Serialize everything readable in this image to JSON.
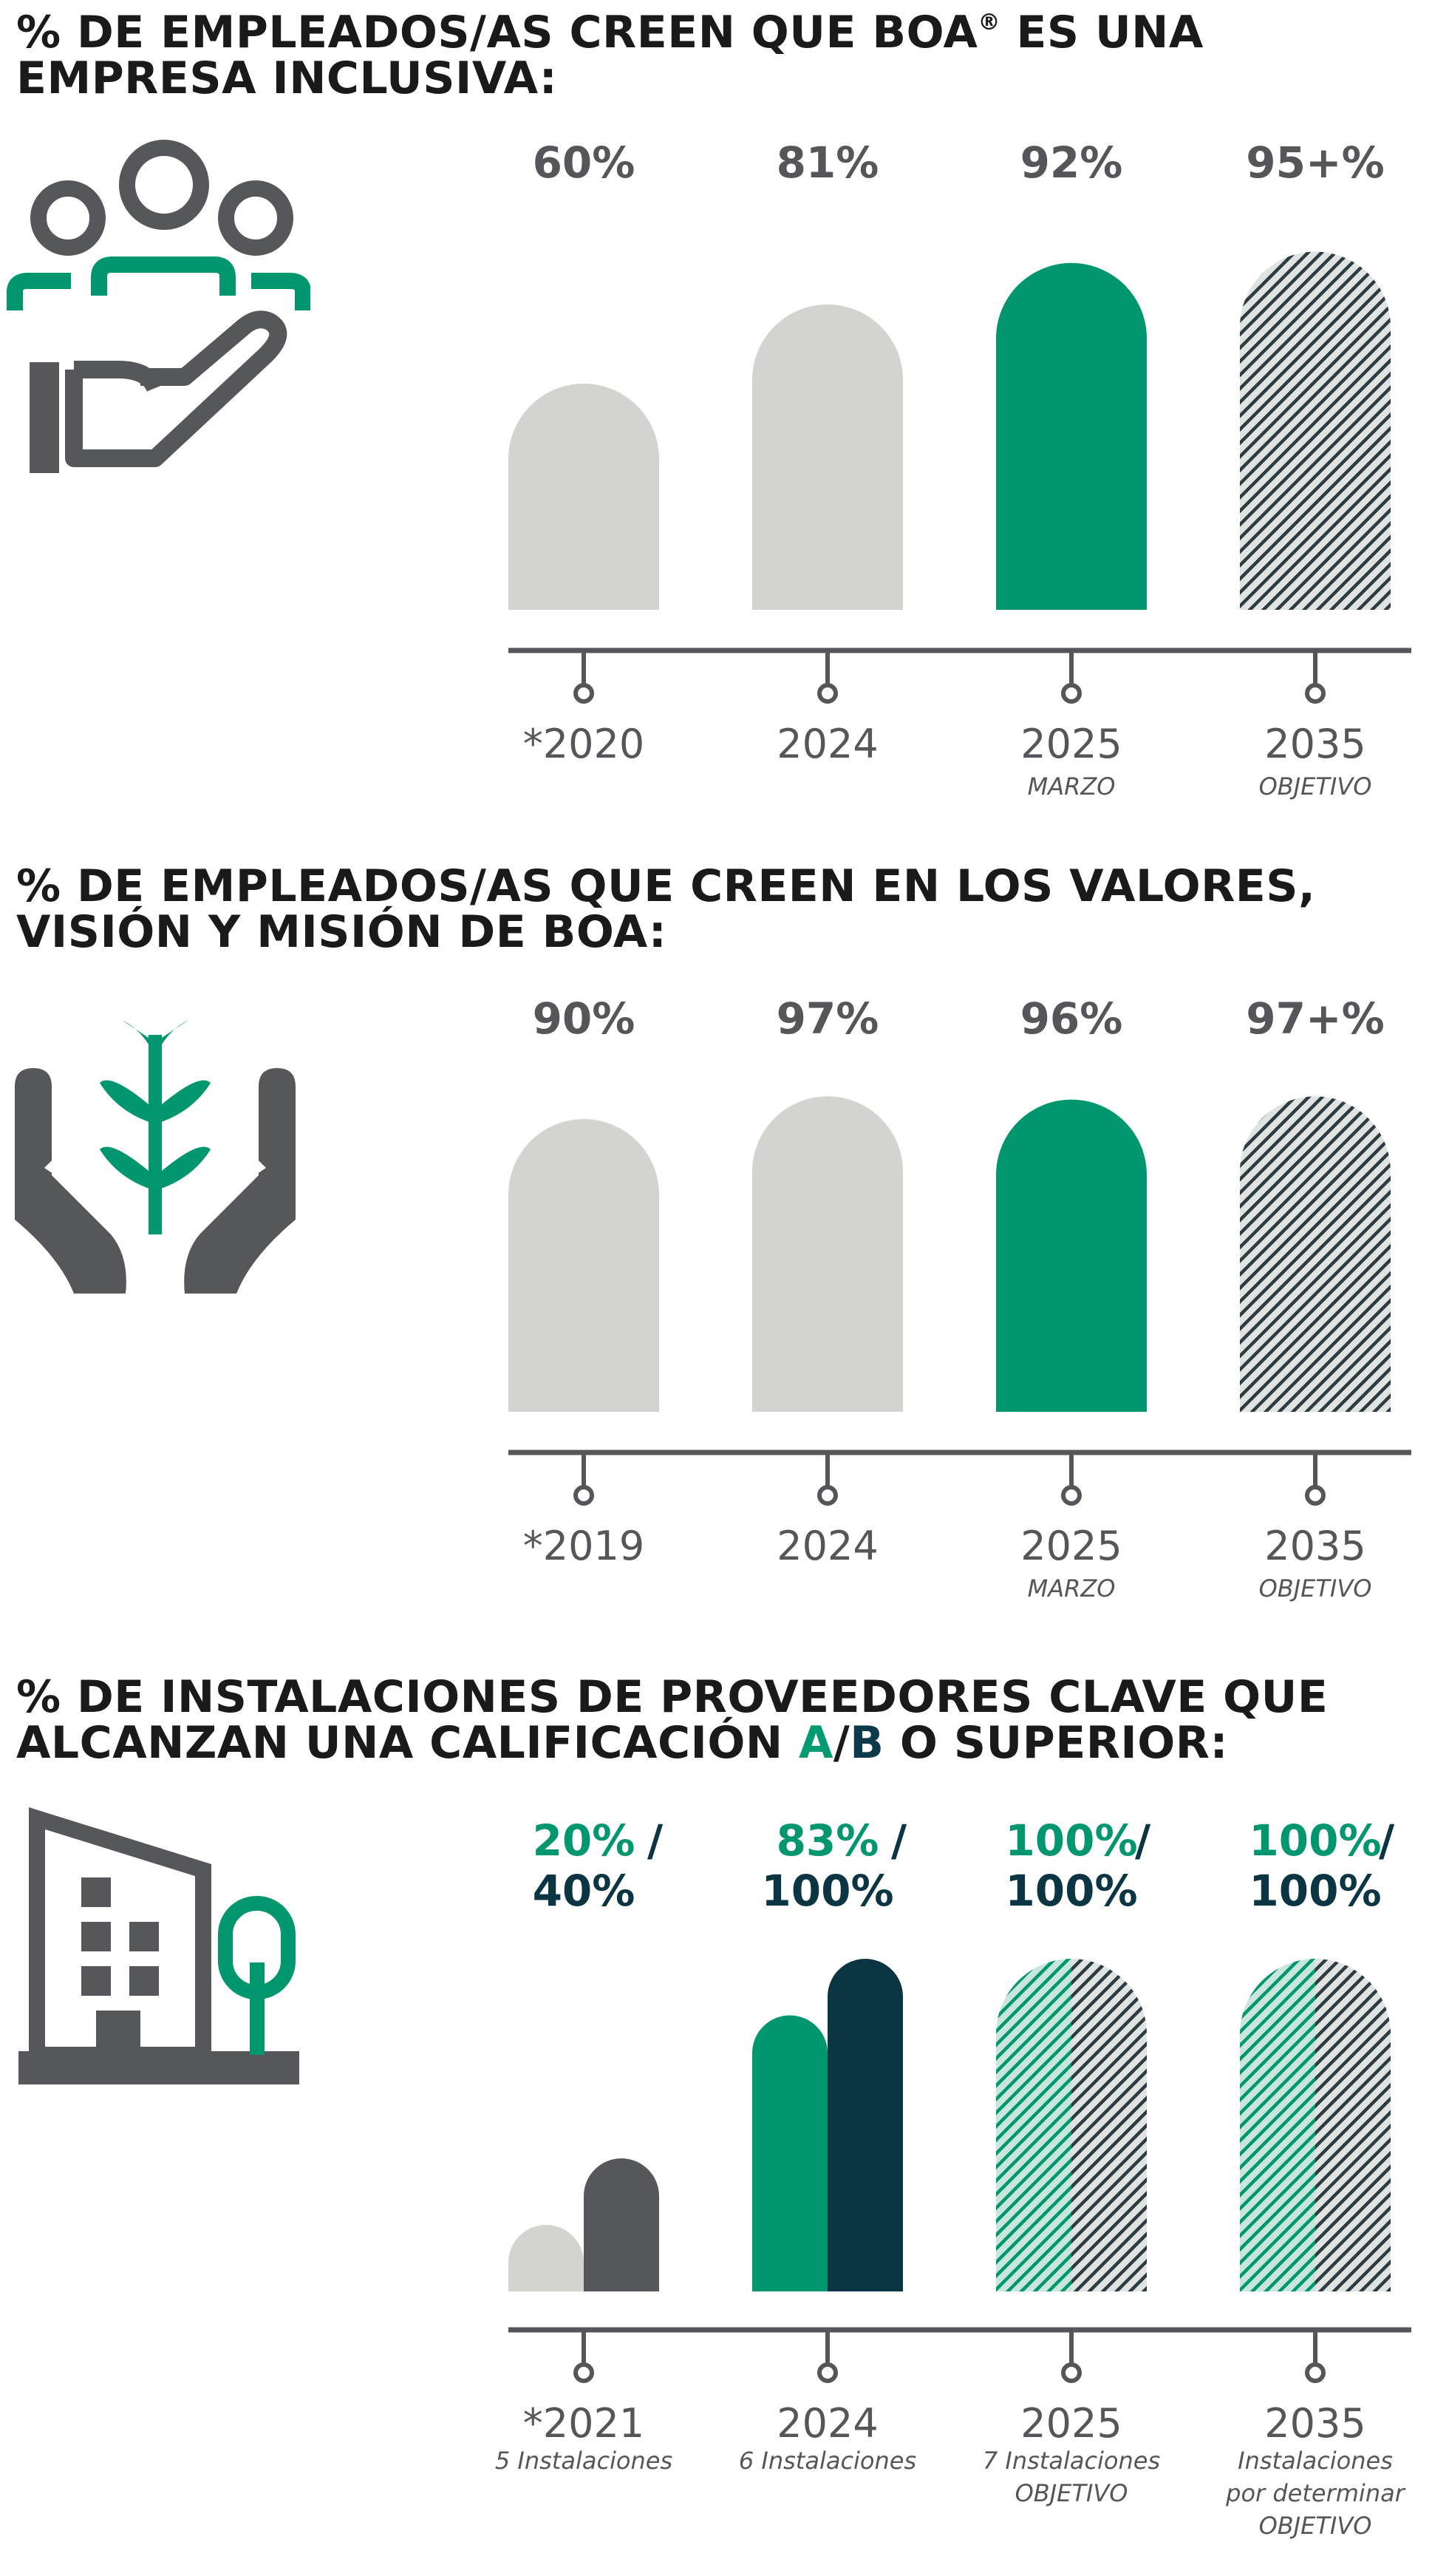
{
  "colors": {
    "past": "#d3d3cf",
    "current": "#00966e",
    "axis": "#55565a",
    "text": "#55565a",
    "navy": "#0b3543",
    "dark_gray": "#55575b",
    "hatch_stripe": "#2e3b40",
    "hatch_green": "#00966e"
  },
  "sections": [
    {
      "title_lines": [
        "% DE EMPLEADOS/AS CREEN QUE BOA",
        " ES UNA",
        "EMPRESA INCLUSIVA:"
      ],
      "title_reg": "®",
      "icon": "people-in-hand-icon"
    },
    {
      "title_lines": [
        "% DE EMPLEADOS/AS QUE CREEN EN LOS VALORES,",
        "VISIÓN Y MISIÓN DE BOA:"
      ],
      "icon": "plant-in-hands-icon"
    },
    {
      "title_line1": "% DE INSTALACIONES DE PROVEEDORES CLAVE QUE",
      "title_line2_pre": "ALCANZAN UNA CALIFICACIÓN ",
      "title_a": "A",
      "title_slash": "/",
      "title_b": "B",
      "title_line2_post": " O SUPERIOR:",
      "icon": "building-tree-icon"
    }
  ],
  "chart_data": [
    {
      "type": "bar",
      "title": "% DE EMPLEADOS/AS CREEN QUE BOA® ES UNA EMPRESA INCLUSIVA:",
      "categories": [
        "*2020",
        "2024",
        "2025",
        "2035"
      ],
      "sublabels": [
        "",
        "",
        "MARZO",
        "OBJETIVO"
      ],
      "values": [
        60,
        81,
        92,
        95
      ],
      "value_labels": [
        "60%",
        "81%",
        "92%",
        "95+%"
      ],
      "styles": [
        "past",
        "past",
        "current",
        "target"
      ],
      "ylim": [
        0,
        100
      ]
    },
    {
      "type": "bar",
      "title": "% DE EMPLEADOS/AS QUE CREEN EN LOS VALORES, VISIÓN Y MISIÓN DE BOA:",
      "categories": [
        "*2019",
        "2024",
        "2025",
        "2035"
      ],
      "sublabels": [
        "",
        "",
        "MARZO",
        "OBJETIVO"
      ],
      "values": [
        90,
        97,
        96,
        97
      ],
      "value_labels": [
        "90%",
        "97%",
        "96%",
        "97+%"
      ],
      "styles": [
        "past",
        "past",
        "current",
        "target"
      ],
      "ylim": [
        0,
        100
      ]
    },
    {
      "type": "bar",
      "title": "% DE INSTALACIONES DE PROVEEDORES CLAVE QUE ALCANZAN UNA CALIFICACIÓN A/B O SUPERIOR:",
      "categories": [
        "*2021",
        "2024",
        "2025",
        "2035"
      ],
      "sublabels": [
        [
          "5 Instalaciones"
        ],
        [
          "6 Instalaciones"
        ],
        [
          "7 Instalaciones",
          "OBJETIVO"
        ],
        [
          "Instalaciones",
          "por determinar",
          "OBJETIVO"
        ]
      ],
      "series": [
        {
          "name": "A",
          "values": [
            20,
            83,
            100,
            100
          ],
          "value_labels": [
            "20%",
            "83%",
            "100%",
            "100%"
          ]
        },
        {
          "name": "B",
          "values": [
            40,
            100,
            100,
            100
          ],
          "value_labels": [
            "40%",
            "100%",
            "100%",
            "100%"
          ]
        }
      ],
      "styles": [
        "past",
        "current",
        "target",
        "target"
      ],
      "ylim": [
        0,
        100
      ]
    }
  ]
}
